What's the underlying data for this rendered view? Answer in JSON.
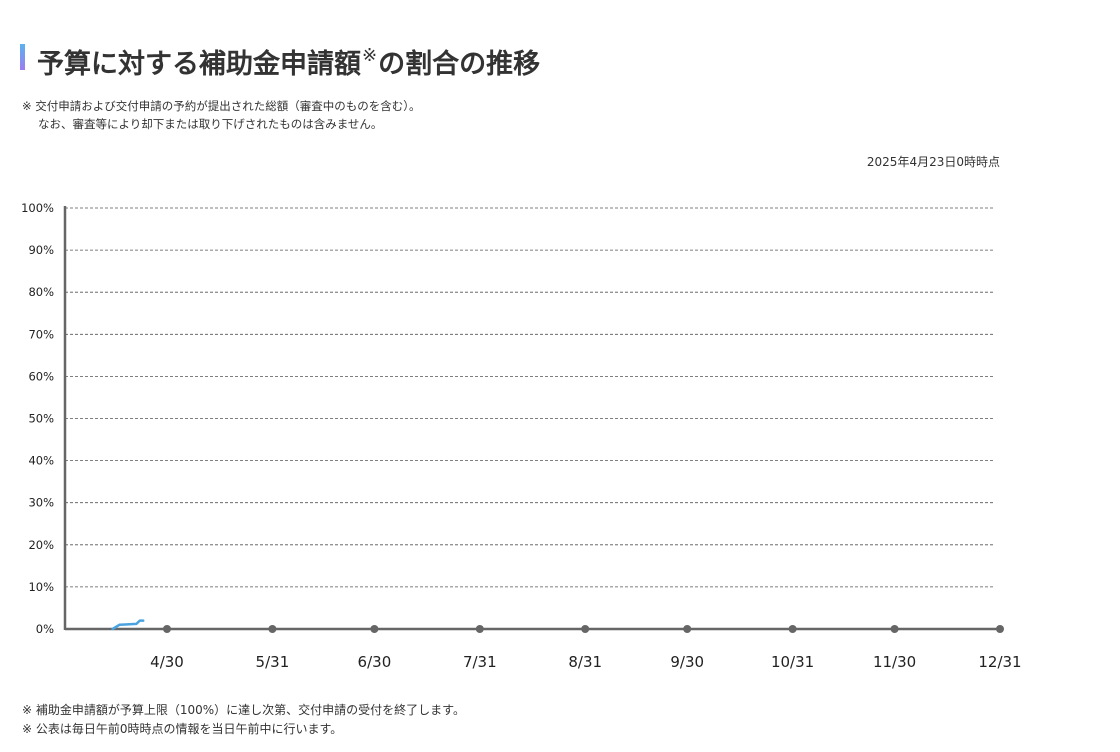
{
  "header": {
    "title_main": "予算に対する補助金申請額",
    "title_mark": "※",
    "title_tail": "の割合の推移"
  },
  "notes": [
    "※ 交付申請および交付申請の予約が提出された総額（審査中のものを含む）。",
    "なお、審査等により却下または取り下げされたものは含みません。"
  ],
  "as_of": "2025年4月23日0時時点",
  "chart_data": {
    "type": "line",
    "title": "",
    "xlabel": "",
    "ylabel": "",
    "x_ticks": [
      "4/30",
      "5/31",
      "6/30",
      "7/31",
      "8/31",
      "9/30",
      "10/31",
      "11/30",
      "12/31"
    ],
    "x_range": [
      "2025-03-31",
      "2025-12-31"
    ],
    "ylim": [
      0,
      100
    ],
    "y_ticks": [
      "0%",
      "10%",
      "20%",
      "30%",
      "40%",
      "50%",
      "60%",
      "70%",
      "80%",
      "90%",
      "100%"
    ],
    "grid": true,
    "legend": "none",
    "series": [
      {
        "color": "#4aa3df",
        "points": [
          {
            "x": "2025-04-14",
            "y": 0.0
          },
          {
            "x": "2025-04-16",
            "y": 1.0
          },
          {
            "x": "2025-04-21",
            "y": 1.2
          },
          {
            "x": "2025-04-22",
            "y": 2.0
          },
          {
            "x": "2025-04-23",
            "y": 2.0
          }
        ]
      }
    ],
    "colors": {
      "axis": "#666666",
      "grid": "#555555",
      "marker": "#666666",
      "line": "#4aa3df"
    }
  },
  "footer": [
    "※  補助金申請額が予算上限（100%）に達し次第、交付申請の受付を終了します。",
    "※  公表は毎日午前0時時点の情報を当日午前中に行います。"
  ]
}
